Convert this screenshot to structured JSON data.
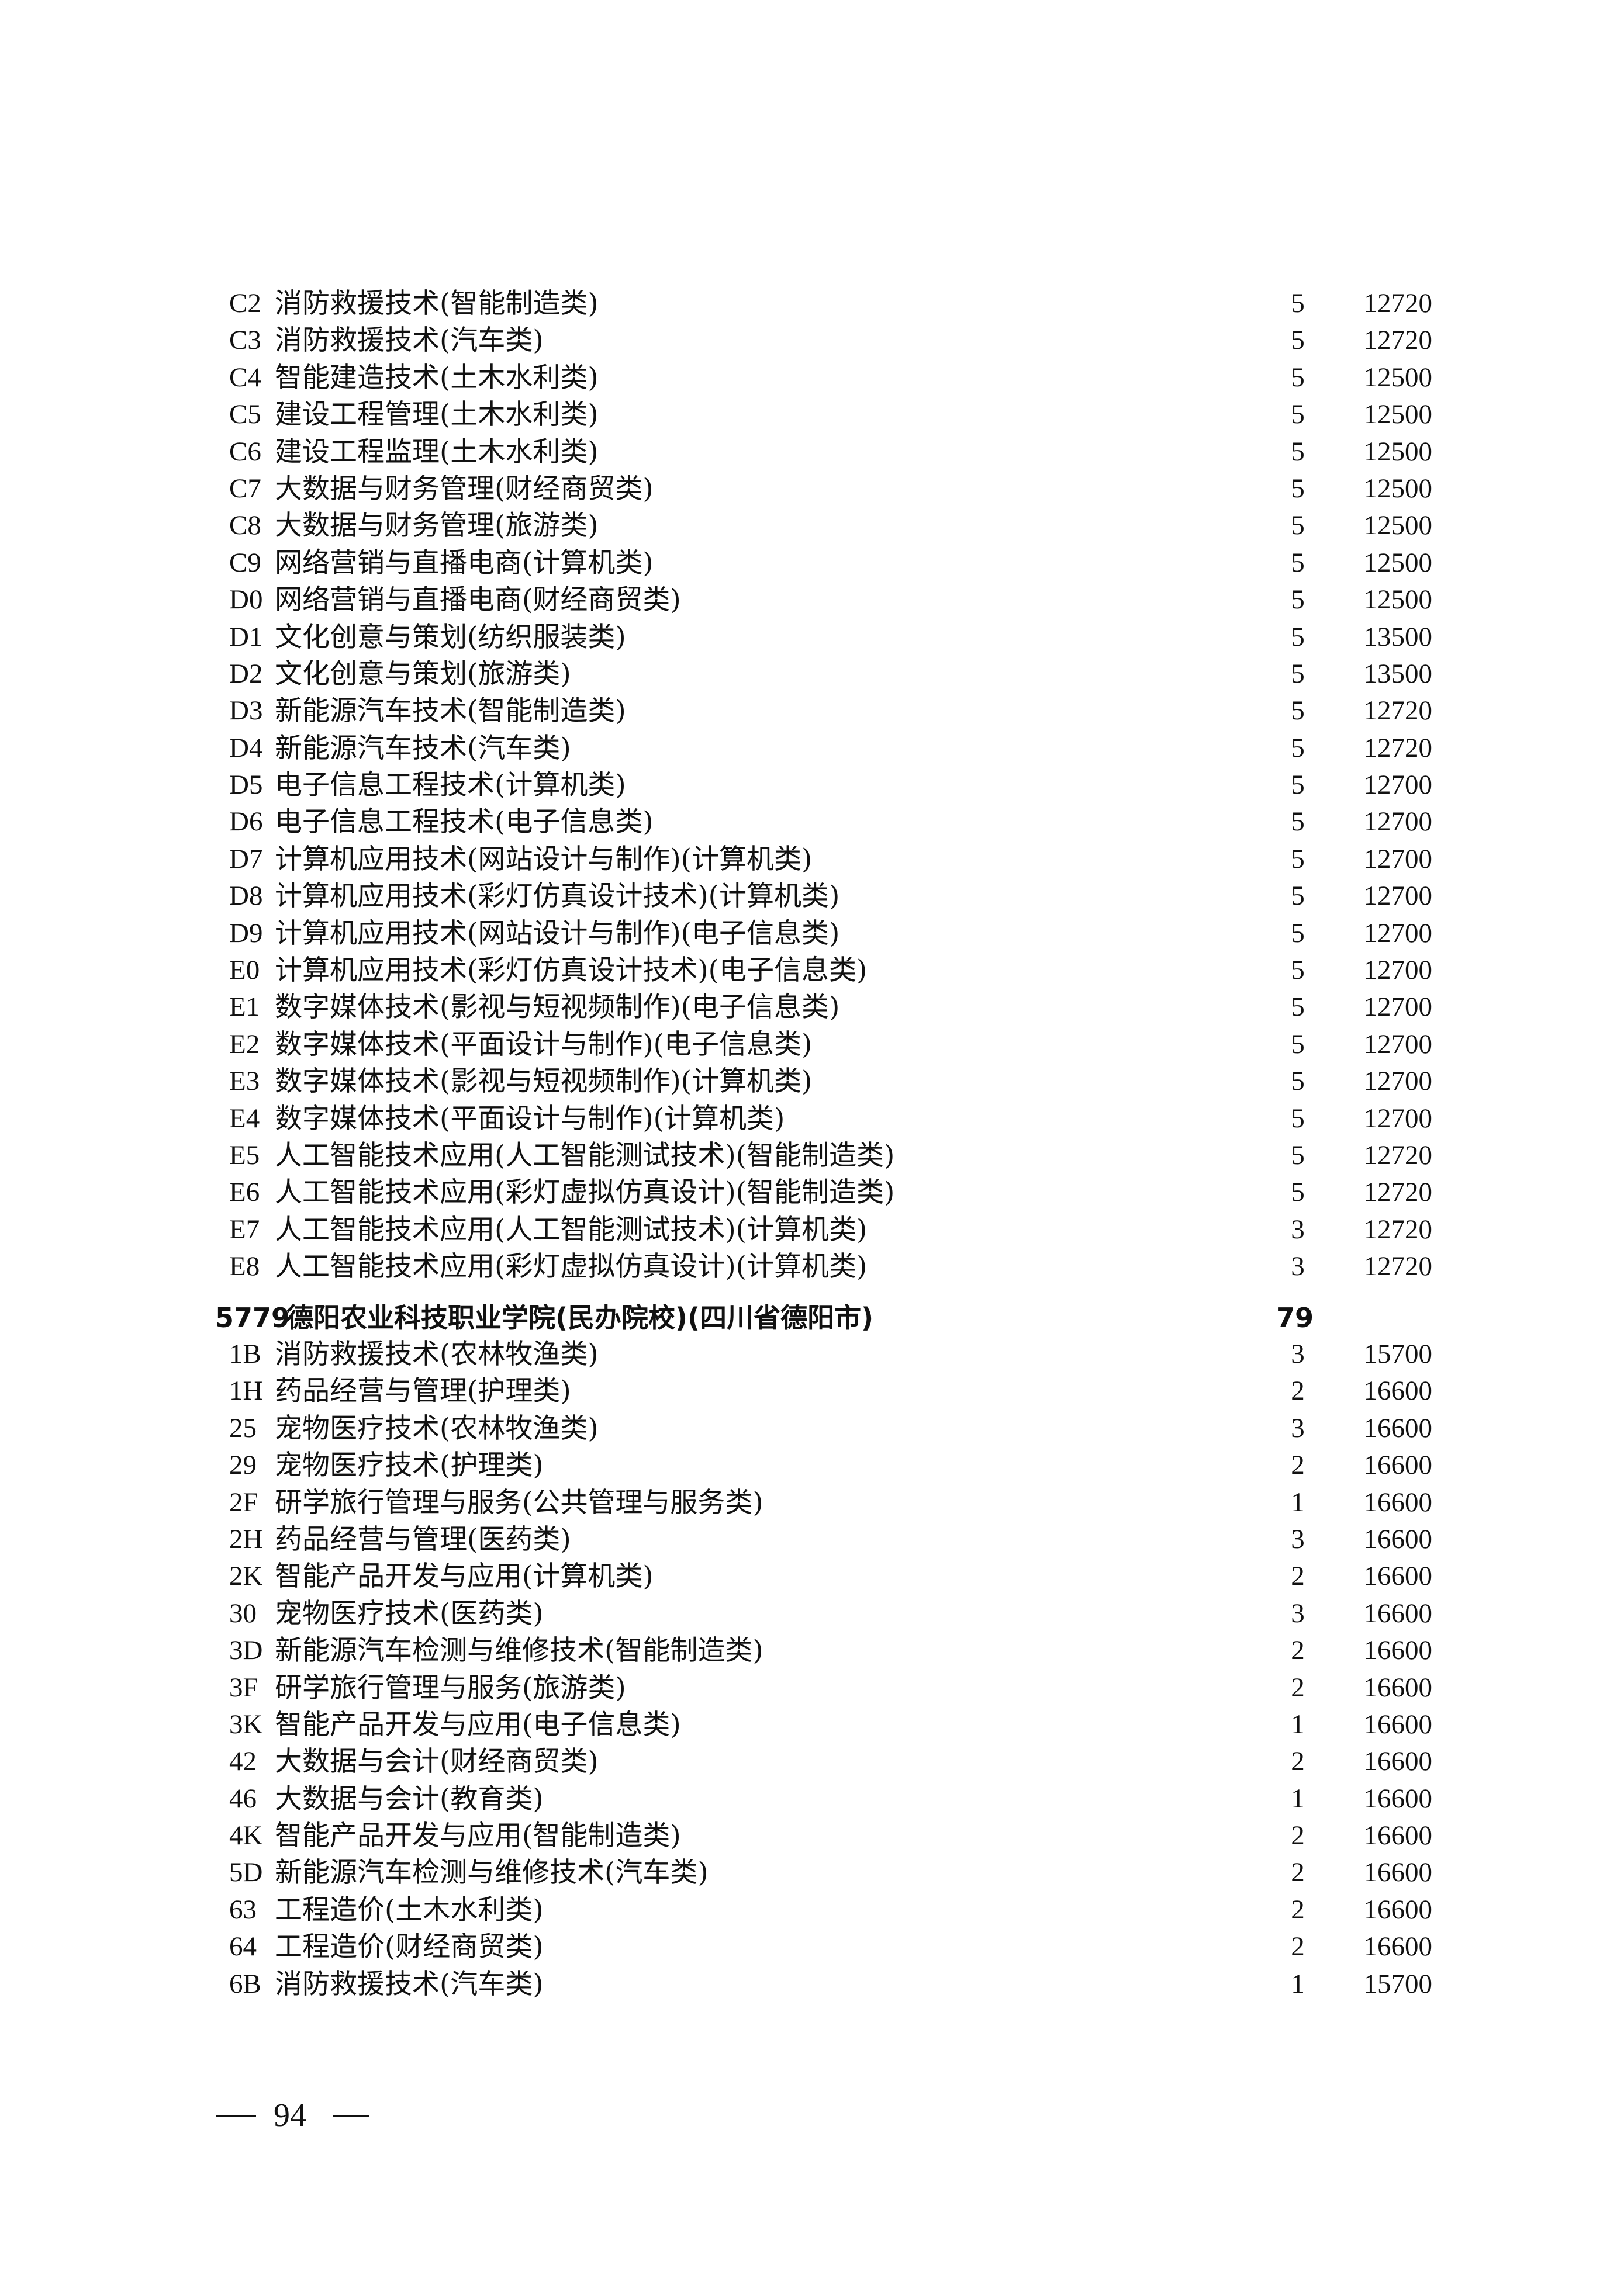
{
  "section1": {
    "rows": [
      {
        "code": "C2",
        "name": "消防救援技术(智能制造类)",
        "count": "5",
        "fee": "12720"
      },
      {
        "code": "C3",
        "name": "消防救援技术(汽车类)",
        "count": "5",
        "fee": "12720"
      },
      {
        "code": "C4",
        "name": "智能建造技术(土木水利类)",
        "count": "5",
        "fee": "12500"
      },
      {
        "code": "C5",
        "name": "建设工程管理(土木水利类)",
        "count": "5",
        "fee": "12500"
      },
      {
        "code": "C6",
        "name": "建设工程监理(土木水利类)",
        "count": "5",
        "fee": "12500"
      },
      {
        "code": "C7",
        "name": "大数据与财务管理(财经商贸类)",
        "count": "5",
        "fee": "12500"
      },
      {
        "code": "C8",
        "name": "大数据与财务管理(旅游类)",
        "count": "5",
        "fee": "12500"
      },
      {
        "code": "C9",
        "name": "网络营销与直播电商(计算机类)",
        "count": "5",
        "fee": "12500"
      },
      {
        "code": "D0",
        "name": "网络营销与直播电商(财经商贸类)",
        "count": "5",
        "fee": "12500"
      },
      {
        "code": "D1",
        "name": "文化创意与策划(纺织服装类)",
        "count": "5",
        "fee": "13500"
      },
      {
        "code": "D2",
        "name": "文化创意与策划(旅游类)",
        "count": "5",
        "fee": "13500"
      },
      {
        "code": "D3",
        "name": "新能源汽车技术(智能制造类)",
        "count": "5",
        "fee": "12720"
      },
      {
        "code": "D4",
        "name": "新能源汽车技术(汽车类)",
        "count": "5",
        "fee": "12720"
      },
      {
        "code": "D5",
        "name": "电子信息工程技术(计算机类)",
        "count": "5",
        "fee": "12700"
      },
      {
        "code": "D6",
        "name": "电子信息工程技术(电子信息类)",
        "count": "5",
        "fee": "12700"
      },
      {
        "code": "D7",
        "name": "计算机应用技术(网站设计与制作)(计算机类)",
        "count": "5",
        "fee": "12700"
      },
      {
        "code": "D8",
        "name": "计算机应用技术(彩灯仿真设计技术)(计算机类)",
        "count": "5",
        "fee": "12700"
      },
      {
        "code": "D9",
        "name": "计算机应用技术(网站设计与制作)(电子信息类)",
        "count": "5",
        "fee": "12700"
      },
      {
        "code": "E0",
        "name": "计算机应用技术(彩灯仿真设计技术)(电子信息类)",
        "count": "5",
        "fee": "12700"
      },
      {
        "code": "E1",
        "name": "数字媒体技术(影视与短视频制作)(电子信息类)",
        "count": "5",
        "fee": "12700"
      },
      {
        "code": "E2",
        "name": "数字媒体技术(平面设计与制作)(电子信息类)",
        "count": "5",
        "fee": "12700"
      },
      {
        "code": "E3",
        "name": "数字媒体技术(影视与短视频制作)(计算机类)",
        "count": "5",
        "fee": "12700"
      },
      {
        "code": "E4",
        "name": "数字媒体技术(平面设计与制作)(计算机类)",
        "count": "5",
        "fee": "12700"
      },
      {
        "code": "E5",
        "name": "人工智能技术应用(人工智能测试技术)(智能制造类)",
        "count": "5",
        "fee": "12720"
      },
      {
        "code": "E6",
        "name": "人工智能技术应用(彩灯虚拟仿真设计)(智能制造类)",
        "count": "5",
        "fee": "12720"
      },
      {
        "code": "E7",
        "name": "人工智能技术应用(人工智能测试技术)(计算机类)",
        "count": "3",
        "fee": "12720"
      },
      {
        "code": "E8",
        "name": "人工智能技术应用(彩灯虚拟仿真设计)(计算机类)",
        "count": "3",
        "fee": "12720"
      }
    ]
  },
  "school": {
    "code": "5779",
    "name": "德阳农业科技职业学院(民办院校)(四川省德阳市)",
    "count": "79"
  },
  "section2": {
    "rows": [
      {
        "code": "1B",
        "name": "消防救援技术(农林牧渔类)",
        "count": "3",
        "fee": "15700"
      },
      {
        "code": "1H",
        "name": "药品经营与管理(护理类)",
        "count": "2",
        "fee": "16600"
      },
      {
        "code": "25",
        "name": "宠物医疗技术(农林牧渔类)",
        "count": "3",
        "fee": "16600"
      },
      {
        "code": "29",
        "name": "宠物医疗技术(护理类)",
        "count": "2",
        "fee": "16600"
      },
      {
        "code": "2F",
        "name": "研学旅行管理与服务(公共管理与服务类)",
        "count": "1",
        "fee": "16600"
      },
      {
        "code": "2H",
        "name": "药品经营与管理(医药类)",
        "count": "3",
        "fee": "16600"
      },
      {
        "code": "2K",
        "name": "智能产品开发与应用(计算机类)",
        "count": "2",
        "fee": "16600"
      },
      {
        "code": "30",
        "name": "宠物医疗技术(医药类)",
        "count": "3",
        "fee": "16600"
      },
      {
        "code": "3D",
        "name": "新能源汽车检测与维修技术(智能制造类)",
        "count": "2",
        "fee": "16600"
      },
      {
        "code": "3F",
        "name": "研学旅行管理与服务(旅游类)",
        "count": "2",
        "fee": "16600"
      },
      {
        "code": "3K",
        "name": "智能产品开发与应用(电子信息类)",
        "count": "1",
        "fee": "16600"
      },
      {
        "code": "42",
        "name": "大数据与会计(财经商贸类)",
        "count": "2",
        "fee": "16600"
      },
      {
        "code": "46",
        "name": "大数据与会计(教育类)",
        "count": "1",
        "fee": "16600"
      },
      {
        "code": "4K",
        "name": "智能产品开发与应用(智能制造类)",
        "count": "2",
        "fee": "16600"
      },
      {
        "code": "5D",
        "name": "新能源汽车检测与维修技术(汽车类)",
        "count": "2",
        "fee": "16600"
      },
      {
        "code": "63",
        "name": "工程造价(土木水利类)",
        "count": "2",
        "fee": "16600"
      },
      {
        "code": "64",
        "name": "工程造价(财经商贸类)",
        "count": "2",
        "fee": "16600"
      },
      {
        "code": "6B",
        "name": "消防救援技术(汽车类)",
        "count": "1",
        "fee": "15700"
      }
    ]
  },
  "footer": {
    "page_number": "94"
  }
}
